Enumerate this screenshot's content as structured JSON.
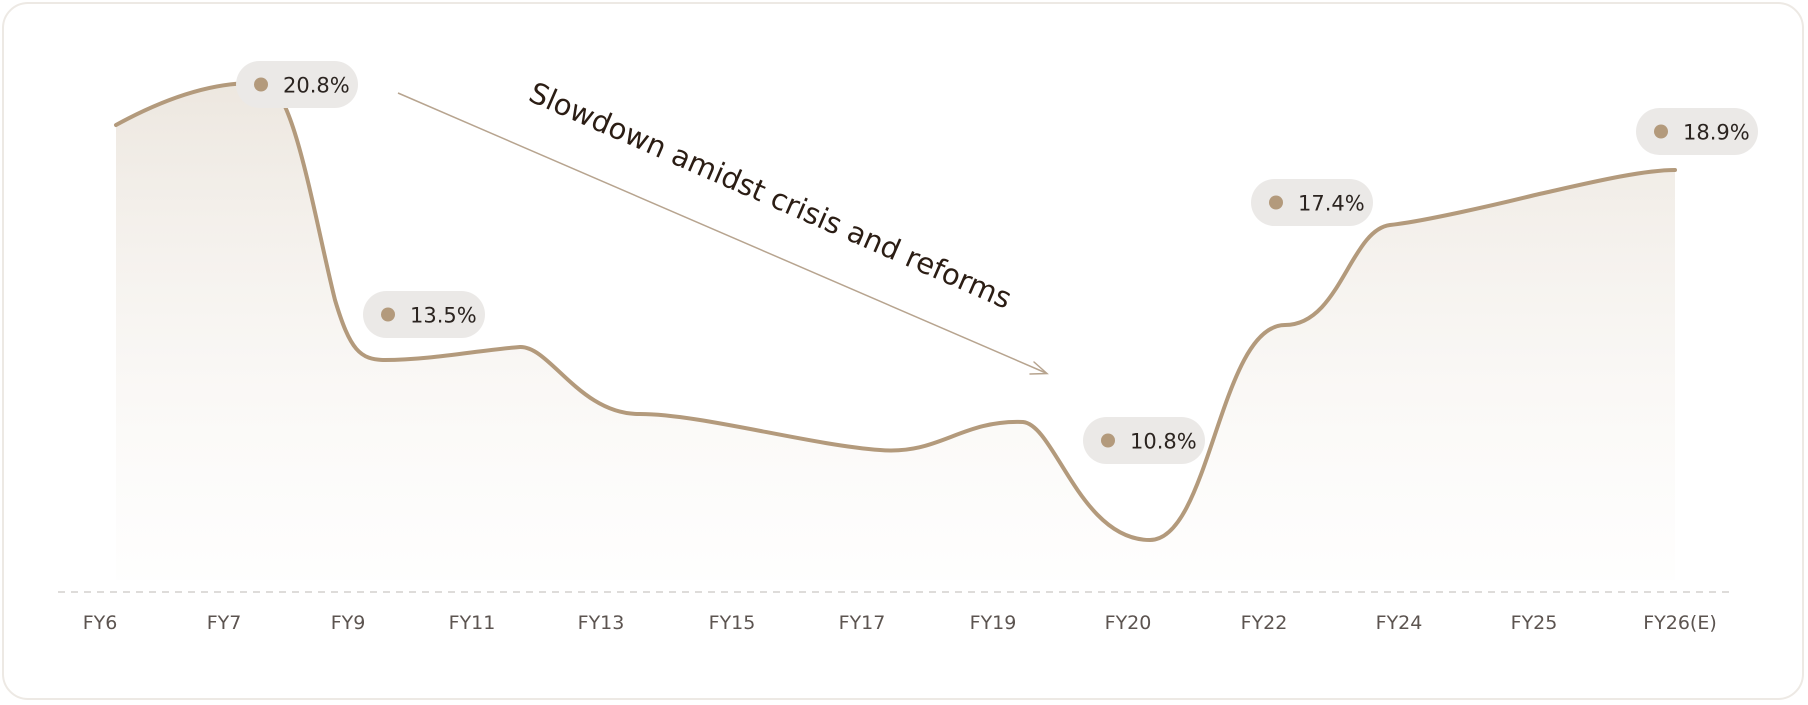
{
  "chart_data": {
    "type": "area",
    "categories": [
      "FY6",
      "FY7",
      "FY9",
      "FY11",
      "FY13",
      "FY15",
      "FY17",
      "FY19",
      "FY20",
      "FY22",
      "FY24",
      "FY25",
      "FY26(E)"
    ],
    "labels": [
      {
        "category": "FY7",
        "text": "20.8%"
      },
      {
        "category": "FY9",
        "text": "13.5%"
      },
      {
        "category": "FY20",
        "text": "10.8%"
      },
      {
        "category": "FY22",
        "text": "17.4%"
      },
      {
        "category": "FY26(E)",
        "text": "18.9%"
      }
    ],
    "annotation": "Slowdown amidst crisis and reforms",
    "grid": false,
    "axis_line": "dashed",
    "colors": {
      "line": "#b39a7c",
      "fill": "#efe9e1",
      "pill": "#ebe9e7",
      "dot": "#b39a7c",
      "text": "#2b2420"
    }
  }
}
